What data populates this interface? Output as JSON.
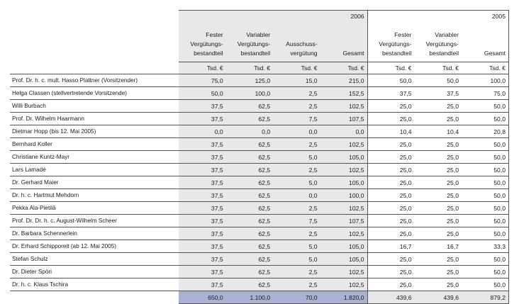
{
  "year_headers": {
    "current": "2006",
    "previous": "2005"
  },
  "columns": {
    "y2006": [
      "Fester Vergütungs-bestandteil",
      "Variabler Vergütungs-bestandteil",
      "Ausschuss-vergütung",
      "Gesamt"
    ],
    "y2005": [
      "Fester Vergütungs-bestandteil",
      "Variabler Vergütungs-bestandteil",
      "Gesamt"
    ]
  },
  "unit": "Tsd. €",
  "rows": [
    {
      "name": "Prof. Dr. h. c. mult. Hasso Plattner (Vorsitzender)",
      "v2006": [
        "75,0",
        "125,0",
        "15,0",
        "215,0"
      ],
      "v2005": [
        "50,0",
        "50,0",
        "100,0"
      ]
    },
    {
      "name": "Helga Classen (stellvertretende Vorsitzende)",
      "v2006": [
        "50,0",
        "100,0",
        "2,5",
        "152,5"
      ],
      "v2005": [
        "37,5",
        "37,5",
        "75,0"
      ]
    },
    {
      "name": "Willi Burbach",
      "v2006": [
        "37,5",
        "62,5",
        "2,5",
        "102,5"
      ],
      "v2005": [
        "25,0",
        "25,0",
        "50,0"
      ]
    },
    {
      "name": "Prof. Dr. Wilhelm Haarmann",
      "v2006": [
        "37,5",
        "62,5",
        "7,5",
        "107,5"
      ],
      "v2005": [
        "25,0",
        "25,0",
        "50,0"
      ]
    },
    {
      "name": "Dietmar Hopp (bis 12. Mai 2005)",
      "v2006": [
        "0,0",
        "0,0",
        "0,0",
        "0,0"
      ],
      "v2005": [
        "10,4",
        "10,4",
        "20,8"
      ]
    },
    {
      "name": "Bernhard Koller",
      "v2006": [
        "37,5",
        "62,5",
        "2,5",
        "102,5"
      ],
      "v2005": [
        "25,0",
        "25,0",
        "50,0"
      ]
    },
    {
      "name": "Christiane Kuntz-Mayr",
      "v2006": [
        "37,5",
        "62,5",
        "5,0",
        "105,0"
      ],
      "v2005": [
        "25,0",
        "25,0",
        "50,0"
      ]
    },
    {
      "name": "Lars Lamadé",
      "v2006": [
        "37,5",
        "62,5",
        "2,5",
        "102,5"
      ],
      "v2005": [
        "25,0",
        "25,0",
        "50,0"
      ]
    },
    {
      "name": "Dr. Gerhard Maier",
      "v2006": [
        "37,5",
        "62,5",
        "5,0",
        "105,0"
      ],
      "v2005": [
        "25,0",
        "25,0",
        "50,0"
      ]
    },
    {
      "name": "Dr. h. c. Hartmut Mehdorn",
      "v2006": [
        "37,5",
        "62,5",
        "0,0",
        "100,0"
      ],
      "v2005": [
        "25,0",
        "25,0",
        "50,0"
      ]
    },
    {
      "name": "Pekka Ala-Pietilä",
      "v2006": [
        "37,5",
        "62,5",
        "2,5",
        "102,5"
      ],
      "v2005": [
        "25,0",
        "25,0",
        "50,0"
      ]
    },
    {
      "name": "Prof. Dr. Dr. h. c. August-Wilhelm Scheer",
      "v2006": [
        "37,5",
        "62,5",
        "7,5",
        "107,5"
      ],
      "v2005": [
        "25,0",
        "25,0",
        "50,0"
      ]
    },
    {
      "name": "Dr. Barbara Schennerlein",
      "v2006": [
        "37,5",
        "62,5",
        "2,5",
        "102,5"
      ],
      "v2005": [
        "25,0",
        "25,0",
        "50,0"
      ]
    },
    {
      "name": "Dr. Erhard Schipporeit (ab 12. Mai 2005)",
      "v2006": [
        "37,5",
        "62,5",
        "5,0",
        "105,0"
      ],
      "v2005": [
        "16,7",
        "16,7",
        "33,3"
      ]
    },
    {
      "name": "Stefan Schulz",
      "v2006": [
        "37,5",
        "62,5",
        "5,0",
        "105,0"
      ],
      "v2005": [
        "25,0",
        "25,0",
        "50,0"
      ]
    },
    {
      "name": "Dr. Dieter Spöri",
      "v2006": [
        "37,5",
        "62,5",
        "2,5",
        "102,5"
      ],
      "v2005": [
        "25,0",
        "25,0",
        "50,0"
      ]
    },
    {
      "name": "Dr. h. c. Klaus Tschira",
      "v2006": [
        "37,5",
        "62,5",
        "2,5",
        "102,5"
      ],
      "v2005": [
        "25,0",
        "25,0",
        "50,0"
      ]
    }
  ],
  "totals": {
    "v2006": [
      "650,0",
      "1.100,0",
      "70,0",
      "1.820,0"
    ],
    "v2005": [
      "439,6",
      "439,6",
      "879,2"
    ]
  }
}
